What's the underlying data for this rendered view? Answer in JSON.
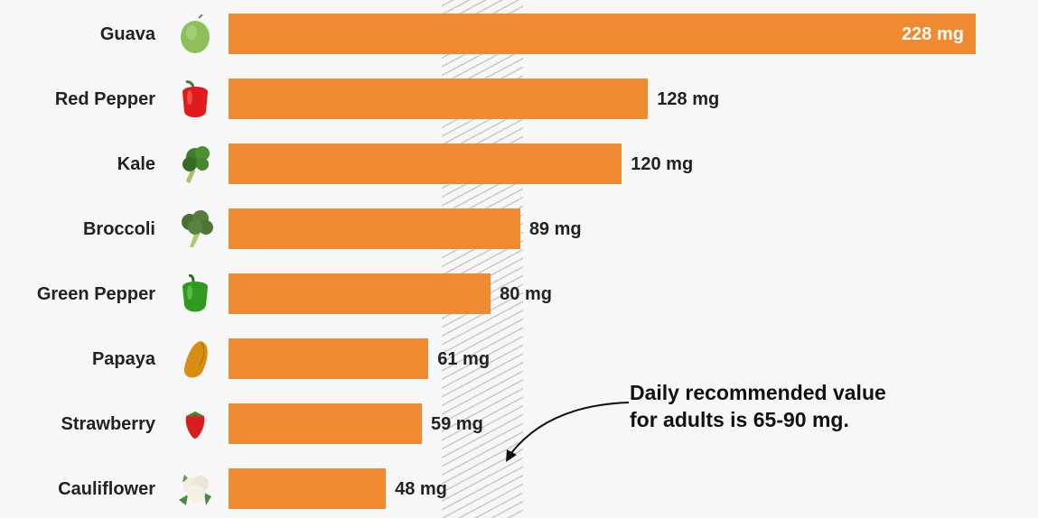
{
  "chart_data": {
    "type": "bar",
    "orientation": "horizontal",
    "title": "",
    "xlabel": "",
    "ylabel": "",
    "unit": "mg",
    "categories": [
      "Guava",
      "Red Pepper",
      "Kale",
      "Broccoli",
      "Green Pepper",
      "Papaya",
      "Strawberry",
      "Cauliflower"
    ],
    "values": [
      228,
      128,
      120,
      89,
      80,
      61,
      59,
      48
    ],
    "value_labels": [
      "228 mg",
      "128 mg",
      "120 mg",
      "89 mg",
      "80 mg",
      "61 mg",
      "59 mg",
      "48 mg"
    ],
    "bar_color": "#f0862a",
    "grid": false,
    "legend": null,
    "reference_band": {
      "from": 65,
      "to": 90,
      "style": "hatched",
      "color": "#c9c9c9"
    },
    "annotation": "Daily recommended value for adults is 65-90 mg."
  },
  "rows": [
    {
      "label": "Guava",
      "icon": "guava-icon",
      "value": 228,
      "value_label": "228 mg"
    },
    {
      "label": "Red Pepper",
      "icon": "red-pepper-icon",
      "value": 128,
      "value_label": "128 mg"
    },
    {
      "label": "Kale",
      "icon": "kale-icon",
      "value": 120,
      "value_label": "120 mg"
    },
    {
      "label": "Broccoli",
      "icon": "broccoli-icon",
      "value": 89,
      "value_label": "89 mg"
    },
    {
      "label": "Green Pepper",
      "icon": "green-pepper-icon",
      "value": 80,
      "value_label": "80 mg"
    },
    {
      "label": "Papaya",
      "icon": "papaya-icon",
      "value": 61,
      "value_label": "61 mg"
    },
    {
      "label": "Strawberry",
      "icon": "strawberry-icon",
      "value": 59,
      "value_label": "59 mg"
    },
    {
      "label": "Cauliflower",
      "icon": "cauliflower-icon",
      "value": 48,
      "value_label": "48 mg"
    }
  ],
  "annotation": {
    "line1": "Daily recommended value",
    "line2": "for adults is 65-90 mg."
  }
}
